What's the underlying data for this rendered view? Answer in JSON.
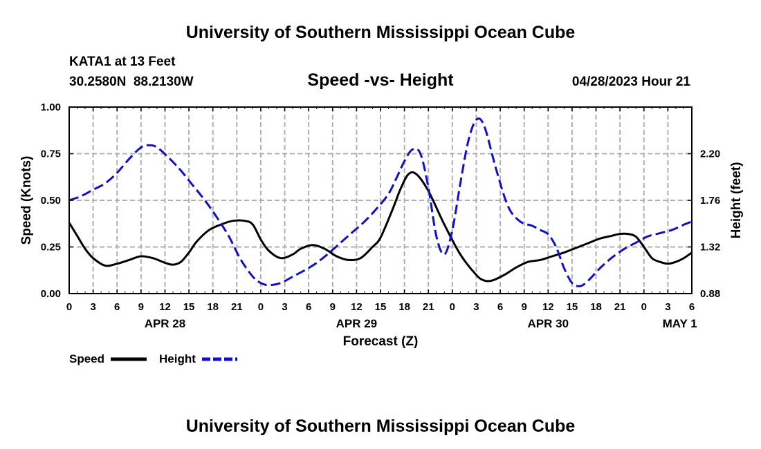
{
  "header": {
    "title": "University of Southern Mississippi Ocean Cube",
    "station": "KATA1 at 13 Feet",
    "coords": "30.2580N  88.2130W",
    "subtitle": "Speed -vs- Height",
    "datetime": "04/28/2023 Hour 21"
  },
  "footer": {
    "title": "University of Southern Mississippi Ocean Cube"
  },
  "legend": {
    "speed_label": "Speed",
    "height_label": "Height"
  },
  "colors": {
    "speed": "#000000",
    "height": "#1010cc",
    "grid": "#b0b0b0"
  },
  "chart_data": {
    "type": "line",
    "title": "Speed -vs- Height",
    "xlabel": "Forecast (Z)",
    "ylabel": "Speed (Knots)",
    "y2label": "Height (feet)",
    "x_unit": "hours from APR 28 00Z",
    "xlim": [
      0,
      78
    ],
    "ylim": [
      0,
      1
    ],
    "y2lim": [
      0.88,
      2.64
    ],
    "x_ticks": [
      0,
      3,
      6,
      9,
      12,
      15,
      18,
      21,
      24,
      27,
      30,
      33,
      36,
      39,
      42,
      45,
      48,
      51,
      54,
      57,
      60,
      63,
      66,
      69,
      72,
      75,
      78
    ],
    "x_tick_labels": [
      "0",
      "3",
      "6",
      "9",
      "12",
      "15",
      "18",
      "21",
      "0",
      "3",
      "6",
      "9",
      "12",
      "15",
      "18",
      "21",
      "0",
      "3",
      "6",
      "9",
      "12",
      "15",
      "18",
      "21",
      "0",
      "3",
      "6"
    ],
    "date_labels": [
      {
        "label": "APR 28",
        "x": 12
      },
      {
        "label": "APR 29",
        "x": 36
      },
      {
        "label": "APR 30",
        "x": 60
      },
      {
        "label": "MAY 1",
        "x": 76.5
      }
    ],
    "y_ticks": [
      0,
      0.25,
      0.5,
      0.75,
      1.0
    ],
    "y_tick_labels": [
      "0.00",
      "0.25",
      "0.50",
      "0.75",
      "1.00"
    ],
    "y2_ticks": [
      0.88,
      1.32,
      1.76,
      2.2
    ],
    "y2_tick_labels": [
      "0.88",
      "1.32",
      "1.76",
      "2.20"
    ],
    "series": [
      {
        "name": "Speed",
        "axis": "left",
        "style": "solid",
        "x": [
          0,
          1,
          2,
          3,
          4.5,
          6,
          7.5,
          9,
          10.5,
          12,
          13,
          14,
          15,
          16,
          17.5,
          19,
          20.5,
          22,
          23,
          24,
          25,
          26.5,
          28,
          29,
          30.5,
          32,
          33.5,
          35,
          36.5,
          38,
          39,
          40.5,
          41.5,
          42.5,
          43.5,
          45,
          47,
          49,
          51,
          52,
          53,
          54.5,
          56,
          57.5,
          59,
          60.5,
          62,
          63.5,
          65,
          66.5,
          68,
          69,
          70,
          71,
          72,
          73,
          74,
          75,
          76,
          77,
          78
        ],
        "values": [
          0.38,
          0.31,
          0.24,
          0.19,
          0.15,
          0.16,
          0.18,
          0.2,
          0.19,
          0.165,
          0.155,
          0.17,
          0.22,
          0.28,
          0.34,
          0.37,
          0.39,
          0.39,
          0.37,
          0.29,
          0.23,
          0.19,
          0.21,
          0.24,
          0.26,
          0.24,
          0.2,
          0.18,
          0.19,
          0.25,
          0.3,
          0.45,
          0.56,
          0.64,
          0.64,
          0.55,
          0.37,
          0.21,
          0.1,
          0.07,
          0.07,
          0.1,
          0.14,
          0.17,
          0.18,
          0.2,
          0.22,
          0.245,
          0.27,
          0.295,
          0.31,
          0.32,
          0.32,
          0.305,
          0.25,
          0.19,
          0.17,
          0.16,
          0.17,
          0.19,
          0.22
        ]
      },
      {
        "name": "Height",
        "axis": "right",
        "style": "dashed",
        "x": [
          0,
          1.5,
          3,
          4.5,
          6,
          7.5,
          9,
          10,
          11,
          12.5,
          14,
          15.5,
          17,
          18.5,
          20,
          21.5,
          23,
          24,
          25,
          26.5,
          28,
          29.5,
          31,
          32.5,
          34,
          35.5,
          37,
          38.5,
          40,
          41,
          42,
          43,
          44,
          45,
          46,
          47,
          48,
          49,
          50,
          51,
          52,
          53.5,
          55,
          56.5,
          58,
          59,
          60,
          61,
          62,
          63,
          64,
          65,
          66.5,
          68,
          69.5,
          71,
          72.5,
          74,
          75.5,
          77,
          78
        ],
        "values": [
          1.76,
          1.8,
          1.86,
          1.92,
          2.02,
          2.15,
          2.26,
          2.28,
          2.26,
          2.16,
          2.04,
          1.9,
          1.76,
          1.6,
          1.42,
          1.2,
          1.04,
          0.98,
          0.96,
          0.98,
          1.04,
          1.1,
          1.17,
          1.26,
          1.36,
          1.46,
          1.56,
          1.68,
          1.82,
          1.97,
          2.13,
          2.24,
          2.2,
          1.88,
          1.42,
          1.25,
          1.48,
          1.92,
          2.32,
          2.52,
          2.46,
          2.05,
          1.7,
          1.56,
          1.52,
          1.48,
          1.44,
          1.32,
          1.12,
          0.98,
          0.95,
          1.0,
          1.12,
          1.22,
          1.3,
          1.36,
          1.42,
          1.45,
          1.48,
          1.53,
          1.56
        ]
      }
    ]
  }
}
